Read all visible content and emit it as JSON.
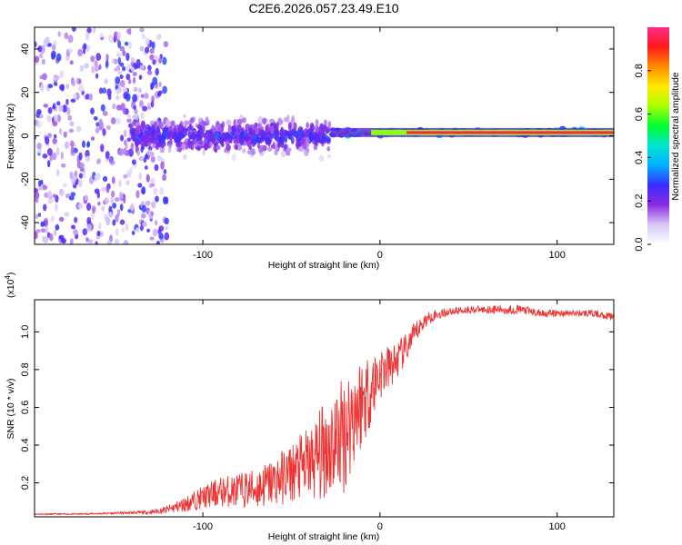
{
  "figure_title": "C2E6.2026.057.23.49.E10",
  "chart_data": [
    {
      "type": "heatmap",
      "title": "C2E6.2026.057.23.49.E10",
      "xlabel": "Height of straight line (km)",
      "ylabel": "Frequency (Hz)",
      "xlim": [
        -195,
        132
      ],
      "ylim": [
        -50,
        50
      ],
      "xticks": [
        -100,
        0,
        100
      ],
      "yticks": [
        -40,
        -20,
        0,
        20,
        40
      ],
      "xtick_labels": [
        "-100",
        "0",
        "100"
      ],
      "ytick_labels": [
        "-40",
        "-20",
        "0",
        "20",
        "40"
      ],
      "colorbar": {
        "label": "Normalized spectral amplitude",
        "range": [
          0,
          1
        ],
        "ticks": [
          0,
          0.2,
          0.4,
          0.6,
          0.8
        ],
        "tick_labels": [
          "0.0",
          "0.2",
          "0.4",
          "0.6",
          "0.8"
        ],
        "colormap": [
          "#ffffff",
          "#d8c8f8",
          "#8a2be2",
          "#3a2cff",
          "#00b0ff",
          "#00e5d0",
          "#00ff30",
          "#a8ff00",
          "#ffea00",
          "#ff8c00",
          "#ff1a1a",
          "#ff2a8a"
        ]
      },
      "regions": [
        {
          "name": "noise",
          "x_range": [
            -195,
            -120
          ],
          "freq_range": [
            -50,
            50
          ],
          "amplitude": 0.1
        },
        {
          "name": "onset",
          "x_range": [
            -140,
            -28
          ],
          "freq_center": 0,
          "freq_spread": 7,
          "amplitude": 0.25
        },
        {
          "name": "carrier",
          "x_range": [
            -28,
            132
          ],
          "freq_center": 1.5,
          "freq_spread": 1.5,
          "amplitude": 0.9
        }
      ]
    },
    {
      "type": "line",
      "title": "",
      "xlabel": "Height of straight line (km)",
      "ylabel": "SNR (10 * v/v)",
      "y_multiplier_label": "(x10",
      "y_multiplier_exp": "4",
      "xlim": [
        -195,
        132
      ],
      "ylim": [
        0.02,
        1.17
      ],
      "xticks": [
        -100,
        0,
        100
      ],
      "yticks": [
        0.2,
        0.4,
        0.6,
        0.8,
        1.0
      ],
      "xtick_labels": [
        "-100",
        "0",
        "100"
      ],
      "ytick_labels": [
        "0.2",
        "0.4",
        "0.6",
        "0.8",
        "1.0"
      ],
      "series": [
        {
          "name": "SNR",
          "color": "#ee3333",
          "x": [
            -195,
            -170,
            -150,
            -130,
            -120,
            -110,
            -100,
            -90,
            -80,
            -70,
            -60,
            -50,
            -40,
            -35,
            -30,
            -25,
            -20,
            -15,
            -10,
            -5,
            0,
            5,
            10,
            15,
            20,
            25,
            30,
            40,
            50,
            60,
            70,
            80,
            90,
            100,
            110,
            120,
            132
          ],
          "y": [
            0.035,
            0.035,
            0.04,
            0.045,
            0.06,
            0.09,
            0.13,
            0.16,
            0.17,
            0.18,
            0.22,
            0.27,
            0.32,
            0.36,
            0.42,
            0.45,
            0.5,
            0.6,
            0.66,
            0.72,
            0.8,
            0.82,
            0.86,
            0.92,
            1.0,
            1.06,
            1.09,
            1.11,
            1.12,
            1.12,
            1.12,
            1.12,
            1.1,
            1.1,
            1.1,
            1.1,
            1.08
          ],
          "noise": [
            0.004,
            0.004,
            0.006,
            0.01,
            0.02,
            0.04,
            0.06,
            0.08,
            0.09,
            0.11,
            0.13,
            0.16,
            0.2,
            0.24,
            0.28,
            0.3,
            0.32,
            0.3,
            0.25,
            0.2,
            0.15,
            0.12,
            0.1,
            0.08,
            0.06,
            0.04,
            0.03,
            0.02,
            0.02,
            0.02,
            0.025,
            0.025,
            0.02,
            0.02,
            0.018,
            0.018,
            0.018
          ]
        }
      ]
    }
  ]
}
